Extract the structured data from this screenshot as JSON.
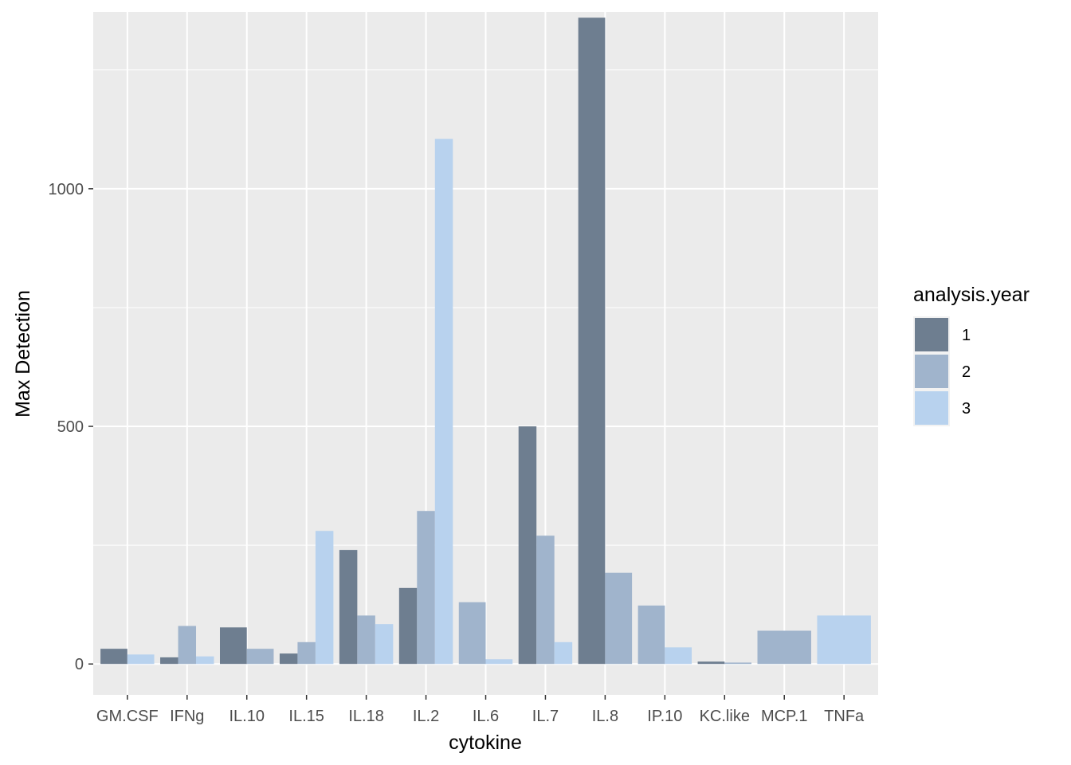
{
  "chart_data": {
    "type": "bar",
    "title": "",
    "xlabel": "cytokine",
    "ylabel": "Max Detection",
    "ylim": [
      -65,
      1372
    ],
    "y_ticks": [
      0,
      500,
      1000
    ],
    "grid": true,
    "legend": {
      "title": "analysis.year",
      "position": "right"
    },
    "categories": [
      "GM.CSF",
      "IFNg",
      "IL.10",
      "IL.15",
      "IL.18",
      "IL.2",
      "IL.6",
      "IL.7",
      "IL.8",
      "IP.10",
      "KC.like",
      "MCP.1",
      "TNFa"
    ],
    "series": [
      {
        "name": "1",
        "color": "#6e7e90",
        "values": [
          32,
          14,
          77,
          22,
          240,
          160,
          null,
          500,
          1360,
          null,
          5,
          null,
          null
        ]
      },
      {
        "name": "2",
        "color": "#a0b4cc",
        "values": [
          null,
          80,
          32,
          46,
          102,
          322,
          130,
          270,
          192,
          123,
          3,
          70,
          null
        ]
      },
      {
        "name": "3",
        "color": "#b8d2ee",
        "values": [
          20,
          16,
          null,
          280,
          84,
          1105,
          10,
          46,
          null,
          35,
          null,
          null,
          102
        ]
      }
    ]
  }
}
